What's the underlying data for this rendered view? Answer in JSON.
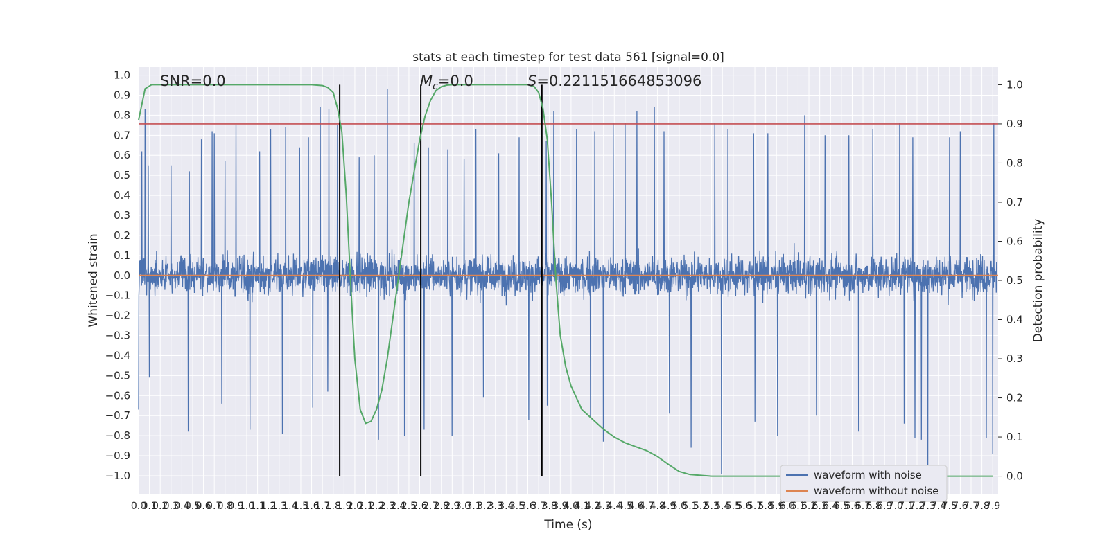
{
  "chart_data": {
    "type": "line",
    "title": "stats at each timestep for test data 561 [signal=0.0]",
    "xlabel": "Time (s)",
    "ylabel": "Whitened strain",
    "y2label": "Detection probability",
    "xlim": [
      0.0,
      7.95
    ],
    "ylim": [
      -1.09,
      1.04
    ],
    "y2lim": [
      -0.045,
      1.045
    ],
    "x_ticks": [
      0.0,
      0.1,
      0.2,
      0.3,
      0.4,
      0.5,
      0.6,
      0.7,
      0.8,
      0.9,
      1.0,
      1.1,
      1.2,
      1.3,
      1.4,
      1.5,
      1.6,
      1.7,
      1.8,
      1.9,
      2.0,
      2.1,
      2.2,
      2.3,
      2.4,
      2.5,
      2.6,
      2.7,
      2.8,
      2.9,
      3.0,
      3.1,
      3.2,
      3.3,
      3.4,
      3.5,
      3.6,
      3.7,
      3.8,
      3.9,
      4.0,
      4.1,
      4.2,
      4.3,
      4.4,
      4.5,
      4.6,
      4.7,
      4.8,
      4.9,
      5.0,
      5.1,
      5.2,
      5.3,
      5.4,
      5.5,
      5.6,
      5.7,
      5.8,
      5.9,
      6.0,
      6.1,
      6.2,
      6.3,
      6.4,
      6.5,
      6.6,
      6.7,
      6.8,
      6.9,
      7.0,
      7.1,
      7.2,
      7.3,
      7.4,
      7.5,
      7.6,
      7.7,
      7.8,
      7.9
    ],
    "y_ticks": [
      -1.0,
      -0.9,
      -0.8,
      -0.7,
      -0.6,
      -0.5,
      -0.4,
      -0.3,
      -0.2,
      -0.1,
      0.0,
      0.1,
      0.2,
      0.3,
      0.4,
      0.5,
      0.6,
      0.7,
      0.8,
      0.9,
      1.0
    ],
    "y2_ticks": [
      0.0,
      0.1,
      0.2,
      0.3,
      0.4,
      0.5,
      0.6,
      0.7,
      0.8,
      0.9,
      1.0
    ],
    "annotations": {
      "snr": "SNR=0.0",
      "mc_symbol": "M",
      "mc_sub": "c",
      "mc_value": "=0.0",
      "s_symbol": "S",
      "s_value": "=0.221151664853096"
    },
    "vertical_lines_x": [
      1.86,
      2.61,
      3.73
    ],
    "threshold_y2": 0.9,
    "series": [
      {
        "name": "waveform with noise",
        "color": "#4c72b0",
        "axis": "left",
        "description_peaks": [
          [
            0.03,
            0.62
          ],
          [
            0.06,
            0.83
          ],
          [
            0.09,
            0.55
          ],
          [
            0.3,
            0.55
          ],
          [
            0.47,
            0.52
          ],
          [
            0.58,
            0.68
          ],
          [
            0.68,
            0.72
          ],
          [
            0.7,
            0.71
          ],
          [
            0.8,
            0.57
          ],
          [
            0.9,
            0.75
          ],
          [
            1.12,
            0.62
          ],
          [
            1.22,
            0.73
          ],
          [
            1.36,
            0.74
          ],
          [
            1.49,
            0.64
          ],
          [
            1.57,
            0.69
          ],
          [
            1.68,
            0.84
          ],
          [
            1.76,
            0.83
          ],
          [
            1.84,
            0.75
          ],
          [
            2.04,
            0.59
          ],
          [
            2.18,
            0.6
          ],
          [
            2.3,
            0.93
          ],
          [
            2.46,
            0.76
          ],
          [
            2.55,
            0.66
          ],
          [
            2.68,
            0.64
          ],
          [
            2.86,
            0.63
          ],
          [
            3.01,
            0.58
          ],
          [
            3.12,
            0.73
          ],
          [
            3.19,
            0.64
          ],
          [
            3.33,
            0.61
          ],
          [
            3.52,
            0.69
          ],
          [
            3.77,
            0.67
          ],
          [
            3.84,
            0.82
          ],
          [
            4.05,
            0.73
          ],
          [
            4.22,
            0.72
          ],
          [
            4.39,
            0.76
          ],
          [
            4.5,
            0.76
          ],
          [
            4.61,
            0.82
          ],
          [
            4.77,
            0.84
          ],
          [
            4.86,
            0.72
          ],
          [
            5.11,
            0.71
          ],
          [
            5.33,
            0.76
          ],
          [
            5.45,
            0.73
          ],
          [
            5.69,
            0.71
          ],
          [
            5.82,
            0.71
          ],
          [
            5.91,
            0.85
          ],
          [
            6.16,
            0.8
          ],
          [
            6.35,
            0.7
          ],
          [
            6.57,
            0.7
          ],
          [
            6.79,
            0.73
          ],
          [
            7.04,
            0.76
          ],
          [
            7.16,
            0.69
          ],
          [
            7.5,
            0.69
          ],
          [
            7.6,
            0.72
          ],
          [
            7.84,
            0.79
          ],
          [
            7.91,
            0.76
          ]
        ],
        "description_troughs": [
          [
            0.0,
            -0.67
          ],
          [
            0.1,
            -0.51
          ],
          [
            0.46,
            -0.78
          ],
          [
            0.77,
            -0.64
          ],
          [
            1.03,
            -0.77
          ],
          [
            1.33,
            -0.79
          ],
          [
            1.61,
            -0.66
          ],
          [
            1.75,
            -0.58
          ],
          [
            2.22,
            -0.82
          ],
          [
            2.46,
            -0.8
          ],
          [
            2.61,
            -0.91
          ],
          [
            2.64,
            -0.77
          ],
          [
            2.9,
            -0.8
          ],
          [
            3.19,
            -0.61
          ],
          [
            3.61,
            -0.72
          ],
          [
            3.78,
            -0.65
          ],
          [
            4.18,
            -0.71
          ],
          [
            4.3,
            -0.83
          ],
          [
            4.91,
            -0.69
          ],
          [
            5.11,
            -0.86
          ],
          [
            5.39,
            -0.99
          ],
          [
            5.7,
            -0.73
          ],
          [
            5.91,
            -0.8
          ],
          [
            6.27,
            -0.7
          ],
          [
            6.66,
            -0.78
          ],
          [
            7.08,
            -0.74
          ],
          [
            7.18,
            -0.81
          ],
          [
            7.24,
            -0.82
          ],
          [
            7.3,
            -0.96
          ],
          [
            7.84,
            -0.81
          ],
          [
            7.9,
            -0.89
          ]
        ]
      },
      {
        "name": "waveform without noise",
        "color": "#dd8452",
        "axis": "left",
        "x": [
          0.0,
          7.95
        ],
        "y": [
          0.0,
          0.0
        ]
      },
      {
        "name": "detection probability",
        "color": "#55a868",
        "axis": "right",
        "x": [
          0.0,
          0.06,
          0.12,
          0.3,
          0.6,
          1.0,
          1.4,
          1.6,
          1.7,
          1.75,
          1.8,
          1.84,
          1.88,
          1.92,
          1.96,
          2.0,
          2.05,
          2.1,
          2.15,
          2.2,
          2.25,
          2.3,
          2.35,
          2.4,
          2.45,
          2.5,
          2.55,
          2.6,
          2.65,
          2.7,
          2.75,
          2.8,
          2.85,
          2.9,
          3.0,
          3.2,
          3.4,
          3.6,
          3.66,
          3.7,
          3.74,
          3.78,
          3.82,
          3.86,
          3.9,
          3.95,
          4.0,
          4.05,
          4.1,
          4.2,
          4.3,
          4.4,
          4.5,
          4.6,
          4.7,
          4.8,
          4.9,
          5.0,
          5.1,
          5.2,
          5.3,
          5.5,
          6.0,
          7.0,
          7.9
        ],
        "y": [
          0.91,
          0.99,
          1.0,
          1.0,
          1.0,
          1.0,
          1.0,
          1.0,
          0.998,
          0.993,
          0.98,
          0.94,
          0.88,
          0.72,
          0.5,
          0.3,
          0.17,
          0.135,
          0.14,
          0.17,
          0.22,
          0.3,
          0.4,
          0.5,
          0.6,
          0.7,
          0.78,
          0.86,
          0.92,
          0.96,
          0.985,
          0.995,
          0.999,
          1.0,
          1.0,
          1.0,
          1.0,
          1.0,
          0.995,
          0.98,
          0.94,
          0.86,
          0.7,
          0.5,
          0.36,
          0.28,
          0.23,
          0.2,
          0.17,
          0.145,
          0.12,
          0.1,
          0.085,
          0.075,
          0.065,
          0.05,
          0.03,
          0.012,
          0.004,
          0.002,
          0.0,
          0.0,
          0.0,
          0.0,
          0.0
        ]
      }
    ],
    "legend": {
      "placement": "lower-right",
      "entries": [
        "waveform with noise",
        "waveform without noise"
      ]
    },
    "colors": {
      "axes_bg": "#eaeaf2",
      "grid": "#ffffff",
      "threshold": "#c44e52",
      "vline": "#000000"
    },
    "grid": true
  }
}
